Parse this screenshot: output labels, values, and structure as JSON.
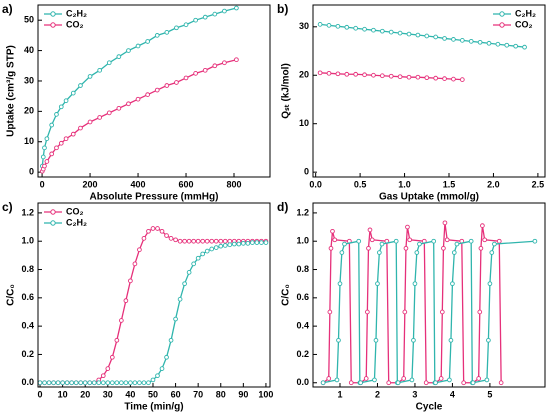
{
  "chart_data": [
    {
      "type": "line",
      "panel_label": "a)",
      "xlabel": "Absolute Pressure (mmHg)",
      "ylabel": "Uptake (cm³/g STP)",
      "x": [
        1,
        5,
        10,
        20,
        40,
        60,
        80,
        100,
        130,
        160,
        200,
        240,
        280,
        320,
        360,
        400,
        440,
        480,
        520,
        560,
        600,
        640,
        680,
        720,
        760,
        810
      ],
      "series": [
        {
          "name": "C₂H₂",
          "color": "#2fb5ad",
          "values": [
            2,
            5,
            8,
            11,
            15.5,
            19,
            21.5,
            23.5,
            26,
            28.5,
            31.5,
            33.5,
            36,
            38,
            40,
            41.5,
            43,
            45,
            46,
            47.5,
            48.5,
            50,
            51,
            52,
            53,
            54
          ]
        },
        {
          "name": "CO₂",
          "color": "#e6307a",
          "values": [
            0.3,
            1,
            2,
            3.5,
            6,
            8,
            9.5,
            11,
            12.5,
            14.5,
            16.5,
            18,
            19.5,
            21,
            22.5,
            24,
            25.5,
            27,
            28.5,
            29.5,
            31,
            32.5,
            33.5,
            35,
            36,
            37
          ]
        }
      ],
      "xlim": [
        -17,
        950
      ],
      "xticks": [
        0,
        200,
        400,
        600,
        800
      ],
      "ylim": [
        -1.6,
        55
      ],
      "yticks": [
        0,
        10,
        20,
        30,
        40,
        50
      ],
      "legend": "upper left",
      "markers": true
    },
    {
      "type": "line",
      "panel_label": "b)",
      "xlabel": "Gas Uptake (mmol/g)",
      "ylabel": "Qₛₜ (kJ/mol)",
      "series": [
        {
          "name": "C₂H₂",
          "color": "#2fb5ad",
          "x": [
            0.05,
            0.15,
            0.25,
            0.35,
            0.45,
            0.55,
            0.65,
            0.75,
            0.85,
            0.95,
            1.05,
            1.15,
            1.25,
            1.35,
            1.45,
            1.55,
            1.65,
            1.75,
            1.85,
            1.95,
            2.05,
            2.15,
            2.25,
            2.35
          ],
          "values": [
            30.5,
            30.3,
            30.1,
            29.9,
            29.7,
            29.5,
            29.3,
            29.1,
            28.9,
            28.7,
            28.5,
            28.3,
            28.1,
            27.9,
            27.6,
            27.4,
            27.2,
            27.0,
            26.8,
            26.6,
            26.4,
            26.2,
            26.0,
            25.8
          ]
        },
        {
          "name": "CO₂",
          "color": "#e6307a",
          "x": [
            0.05,
            0.15,
            0.25,
            0.35,
            0.45,
            0.55,
            0.65,
            0.75,
            0.85,
            0.95,
            1.05,
            1.15,
            1.25,
            1.35,
            1.45,
            1.55,
            1.65
          ],
          "values": [
            20.5,
            20.4,
            20.3,
            20.2,
            20.2,
            20.1,
            20.0,
            19.9,
            19.8,
            19.7,
            19.6,
            19.6,
            19.5,
            19.4,
            19.3,
            19.2,
            19.1
          ]
        }
      ],
      "xlim": [
        -0.03,
        2.58
      ],
      "xticks": [
        {
          "value": 0,
          "label": "0.0"
        },
        0.5,
        {
          "value": 1,
          "label": "1.0"
        },
        1.5,
        {
          "value": 2,
          "label": "2.0"
        },
        2.5
      ],
      "ylim": [
        -1,
        34.5
      ],
      "yticks": [
        0,
        10,
        20,
        30
      ],
      "legend": "upper right",
      "markers": true
    },
    {
      "type": "line",
      "panel_label": "c)",
      "xlabel": "Time (min/g)",
      "ylabel": "C/C₀",
      "x": [
        0,
        2,
        4,
        6,
        8,
        10,
        12,
        14,
        16,
        18,
        20,
        22,
        24,
        26,
        28,
        30,
        32,
        34,
        36,
        38,
        40,
        42,
        44,
        46,
        48,
        50,
        52,
        54,
        56,
        58,
        60,
        62,
        64,
        66,
        68,
        70,
        72,
        74,
        76,
        78,
        80,
        82,
        84,
        86,
        88,
        90,
        92,
        94,
        96,
        98,
        100
      ],
      "series": [
        {
          "name": "CO₂",
          "color": "#e6307a",
          "values": [
            0,
            0,
            0,
            0,
            0,
            0,
            0,
            0,
            0,
            0,
            0,
            0,
            0,
            0.02,
            0.05,
            0.1,
            0.18,
            0.3,
            0.44,
            0.58,
            0.72,
            0.84,
            0.94,
            1.02,
            1.07,
            1.09,
            1.09,
            1.07,
            1.04,
            1.02,
            1.01,
            1,
            1,
            1,
            1,
            1,
            1,
            1,
            1,
            1,
            1,
            1,
            1,
            1,
            1,
            1,
            1,
            1,
            1,
            1,
            1
          ]
        },
        {
          "name": "C₂H₂",
          "color": "#2fb5ad",
          "values": [
            0,
            0,
            0,
            0,
            0,
            0,
            0,
            0,
            0,
            0,
            0,
            0,
            0,
            0,
            0,
            0,
            0,
            0,
            0,
            0,
            0,
            0,
            0,
            0,
            0,
            0.02,
            0.05,
            0.1,
            0.18,
            0.3,
            0.45,
            0.59,
            0.7,
            0.78,
            0.84,
            0.88,
            0.91,
            0.93,
            0.945,
            0.955,
            0.965,
            0.97,
            0.975,
            0.98,
            0.98,
            0.985,
            0.985,
            0.99,
            0.99,
            0.99,
            0.99
          ]
        }
      ],
      "xlim": [
        -0.9,
        101.8
      ],
      "xticks": [
        0,
        10,
        20,
        30,
        40,
        50,
        60,
        70,
        80,
        90,
        100
      ],
      "ylim": [
        -0.03,
        1.27
      ],
      "yticks": [
        {
          "value": 0,
          "label": "0.0"
        },
        0.2,
        0.4,
        0.6,
        0.8,
        {
          "value": 1,
          "label": "1.0"
        },
        1.2
      ],
      "legend": "upper left",
      "markers": true
    },
    {
      "type": "line",
      "panel_label": "d)",
      "xlabel": "Cycle",
      "ylabel": "C/C₀",
      "series": [
        {
          "color": "#e6307a",
          "x": [
            0.55,
            0.7,
            0.73,
            0.76,
            0.8,
            0.86,
            1.25,
            1.3,
            1.55,
            1.7,
            1.73,
            1.76,
            1.8,
            1.86,
            2.25,
            2.3,
            2.55,
            2.7,
            2.73,
            2.76,
            2.8,
            2.86,
            3.25,
            3.3,
            3.55,
            3.7,
            3.73,
            3.76,
            3.8,
            3.86,
            4.25,
            4.3,
            4.55,
            4.7,
            4.73,
            4.76,
            4.8,
            4.86,
            5.25,
            5.3
          ],
          "values": [
            0,
            0.03,
            0.5,
            0.95,
            1.07,
            1.01,
            1,
            0,
            0,
            0.03,
            0.5,
            0.95,
            1.08,
            1.01,
            1,
            0,
            0,
            0.03,
            0.5,
            0.95,
            1.1,
            1.01,
            1,
            0,
            0,
            0.03,
            0.5,
            0.95,
            1.13,
            1.01,
            1,
            0,
            0,
            0.03,
            0.5,
            0.95,
            1.11,
            1.01,
            1,
            0
          ]
        },
        {
          "color": "#2fb5ad",
          "x": [
            0.55,
            0.92,
            0.96,
            1.0,
            1.05,
            1.12,
            1.5,
            1.53,
            1.55,
            1.92,
            1.96,
            2.0,
            2.05,
            2.12,
            2.5,
            2.53,
            2.55,
            2.92,
            2.96,
            3.0,
            3.05,
            3.12,
            3.5,
            3.53,
            3.55,
            3.92,
            3.96,
            4.0,
            4.05,
            4.12,
            4.5,
            4.53,
            4.55,
            4.92,
            4.96,
            5.0,
            5.05,
            5.12,
            6.2
          ],
          "values": [
            0,
            0.02,
            0.3,
            0.7,
            0.92,
            0.98,
            1,
            0,
            0,
            0.02,
            0.3,
            0.7,
            0.92,
            0.98,
            1,
            0,
            0,
            0.02,
            0.3,
            0.7,
            0.92,
            0.98,
            1,
            0,
            0,
            0.02,
            0.3,
            0.7,
            0.92,
            0.98,
            1,
            0,
            0,
            0.02,
            0.3,
            0.7,
            0.92,
            0.98,
            1
          ]
        }
      ],
      "xlim": [
        0.28,
        6.47
      ],
      "xticks": [
        1,
        2,
        3,
        4,
        5
      ],
      "ylim": [
        -0.03,
        1.27
      ],
      "yticks": [
        {
          "value": 0,
          "label": "0.0"
        },
        0.2,
        0.4,
        0.6,
        0.8,
        {
          "value": 1,
          "label": "1.0"
        },
        1.2
      ],
      "markers": true
    }
  ]
}
